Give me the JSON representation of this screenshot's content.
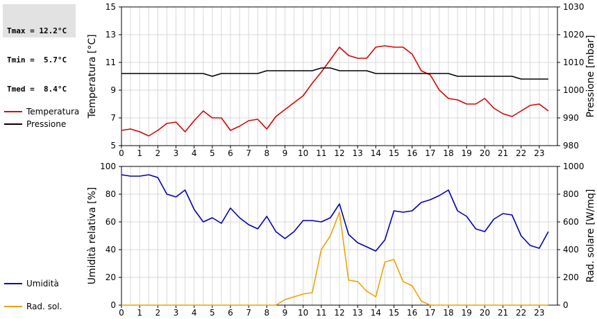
{
  "stats": {
    "tmax": "Tmax = 12.2°C",
    "tmin": "Tmin =  5.7°C",
    "tmed": "Tmed =  8.4°C"
  },
  "legend_top": [
    {
      "label": "Temperatura",
      "color": "#dd0000"
    },
    {
      "label": "Pressione",
      "color": "#000000"
    }
  ],
  "legend_bottom": [
    {
      "label": "Umidità",
      "color": "#0000bb"
    },
    {
      "label": "Rad. sol.",
      "color": "#f0a000"
    }
  ],
  "chart_data": [
    {
      "type": "line",
      "xlabel": "",
      "ylabel": "Temperatura [°C]",
      "y2label": "Pressione [mbar]",
      "xlim": [
        0,
        24
      ],
      "ylim": [
        5,
        15
      ],
      "y2lim": [
        980,
        1030
      ],
      "x_ticks": [
        0,
        1,
        2,
        3,
        4,
        5,
        6,
        7,
        8,
        9,
        10,
        11,
        12,
        13,
        14,
        15,
        16,
        17,
        18,
        19,
        20,
        21,
        22,
        23
      ],
      "y_ticks": [
        5,
        7,
        9,
        11,
        13,
        15
      ],
      "y2_ticks": [
        980,
        990,
        1000,
        1010,
        1020,
        1030
      ],
      "grid": true,
      "series": [
        {
          "name": "Temperatura",
          "color": "#dd0000",
          "axis": "left",
          "x": [
            0,
            0.5,
            1,
            1.5,
            2,
            2.5,
            3,
            3.5,
            4,
            4.5,
            5,
            5.5,
            6,
            6.5,
            7,
            7.5,
            8,
            8.5,
            9,
            9.5,
            10,
            10.5,
            11,
            11.5,
            12,
            12.5,
            13,
            13.5,
            14,
            14.5,
            15,
            15.5,
            16,
            16.5,
            17,
            17.5,
            18,
            18.5,
            19,
            19.5,
            20,
            20.5,
            21,
            21.5,
            22,
            22.5,
            23,
            23.5
          ],
          "y": [
            6.1,
            6.2,
            6.0,
            5.7,
            6.1,
            6.6,
            6.7,
            6.0,
            6.8,
            7.5,
            7.0,
            7.0,
            6.1,
            6.4,
            6.8,
            6.9,
            6.2,
            7.1,
            7.6,
            8.1,
            8.6,
            9.5,
            10.3,
            11.2,
            12.1,
            11.5,
            11.3,
            11.3,
            12.1,
            12.2,
            12.1,
            12.1,
            11.6,
            10.4,
            10.1,
            9.0,
            8.4,
            8.3,
            8.0,
            8.0,
            8.4,
            7.7,
            7.3,
            7.1,
            7.5,
            7.9,
            8.0,
            7.5
          ]
        },
        {
          "name": "Pressione",
          "color": "#000000",
          "axis": "right",
          "x": [
            0,
            0.5,
            1,
            1.5,
            2,
            2.5,
            3,
            3.5,
            4,
            4.5,
            5,
            5.5,
            6,
            6.5,
            7,
            7.5,
            8,
            8.5,
            9,
            9.5,
            10,
            10.5,
            11,
            11.5,
            12,
            12.5,
            13,
            13.5,
            14,
            14.5,
            15,
            15.5,
            16,
            16.5,
            17,
            17.5,
            18,
            18.5,
            19,
            19.5,
            20,
            20.5,
            21,
            21.5,
            22,
            22.5,
            23,
            23.5
          ],
          "y": [
            1006,
            1006,
            1006,
            1006,
            1006,
            1006,
            1006,
            1006,
            1006,
            1006,
            1005,
            1006,
            1006,
            1006,
            1006,
            1006,
            1007,
            1007,
            1007,
            1007,
            1007,
            1007,
            1008,
            1008,
            1007,
            1007,
            1007,
            1007,
            1006,
            1006,
            1006,
            1006,
            1006,
            1006,
            1006,
            1006,
            1006,
            1005,
            1005,
            1005,
            1005,
            1005,
            1005,
            1005,
            1004,
            1004,
            1004,
            1004
          ]
        }
      ]
    },
    {
      "type": "line",
      "xlabel": "",
      "ylabel": "Umidità relativa [%]",
      "y2label": "Rad. solare [W/mq]",
      "xlim": [
        0,
        24
      ],
      "ylim": [
        0,
        100
      ],
      "y2lim": [
        0,
        1000
      ],
      "x_ticks": [
        0,
        1,
        2,
        3,
        4,
        5,
        6,
        7,
        8,
        9,
        10,
        11,
        12,
        13,
        14,
        15,
        16,
        17,
        18,
        19,
        20,
        21,
        22,
        23
      ],
      "y_ticks": [
        0,
        20,
        40,
        60,
        80,
        100
      ],
      "y2_ticks": [
        0,
        200,
        400,
        600,
        800,
        1000
      ],
      "grid": true,
      "series": [
        {
          "name": "Umidità",
          "color": "#0000bb",
          "axis": "left",
          "x": [
            0,
            0.5,
            1,
            1.5,
            2,
            2.5,
            3,
            3.5,
            4,
            4.5,
            5,
            5.5,
            6,
            6.5,
            7,
            7.5,
            8,
            8.5,
            9,
            9.5,
            10,
            10.5,
            11,
            11.5,
            12,
            12.5,
            13,
            13.5,
            14,
            14.5,
            15,
            15.5,
            16,
            16.5,
            17,
            17.5,
            18,
            18.5,
            19,
            19.5,
            20,
            20.5,
            21,
            21.5,
            22,
            22.5,
            23,
            23.5
          ],
          "y": [
            94,
            93,
            93,
            94,
            92,
            80,
            78,
            83,
            69,
            60,
            63,
            59,
            70,
            63,
            58,
            55,
            64,
            53,
            48,
            53,
            61,
            61,
            60,
            63,
            73,
            51,
            45,
            42,
            39,
            47,
            68,
            67,
            68,
            74,
            76,
            79,
            83,
            68,
            64,
            55,
            53,
            62,
            66,
            65,
            50,
            43,
            41,
            53
          ]
        },
        {
          "name": "Rad. sol.",
          "color": "#f0a000",
          "axis": "right",
          "x": [
            0,
            0.5,
            1,
            1.5,
            2,
            2.5,
            3,
            3.5,
            4,
            4.5,
            5,
            5.5,
            6,
            6.5,
            7,
            7.5,
            8,
            8.5,
            9,
            9.5,
            10,
            10.5,
            11,
            11.5,
            12,
            12.5,
            13,
            13.5,
            14,
            14.5,
            15,
            15.5,
            16,
            16.5,
            17,
            17.5,
            18,
            18.5,
            19,
            19.5,
            20,
            20.5,
            21,
            21.5,
            22,
            22.5,
            23,
            23.5
          ],
          "y": [
            0,
            0,
            0,
            0,
            0,
            0,
            0,
            0,
            0,
            0,
            0,
            0,
            0,
            0,
            0,
            0,
            0,
            0,
            40,
            60,
            80,
            90,
            400,
            500,
            670,
            180,
            170,
            100,
            60,
            310,
            330,
            170,
            140,
            30,
            0,
            0,
            0,
            0,
            0,
            0,
            0,
            0,
            0,
            0,
            0,
            0,
            0,
            0
          ]
        }
      ]
    }
  ]
}
